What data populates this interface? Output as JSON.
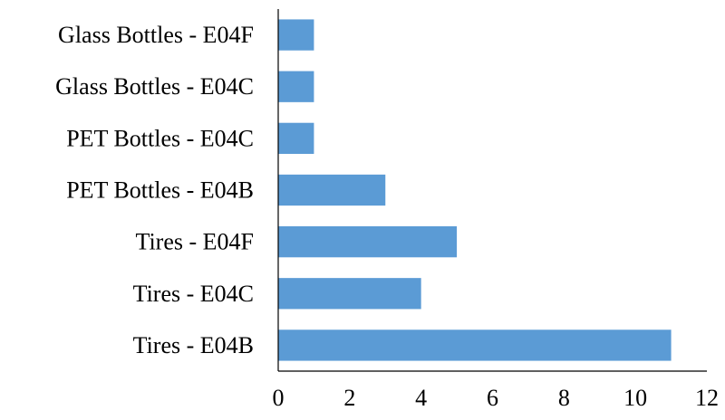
{
  "chart_data": {
    "type": "bar",
    "orientation": "horizontal",
    "categories": [
      "Glass Bottles - E04F",
      "Glass Bottles - E04C",
      "PET Bottles - E04C",
      "PET Bottles - E04B",
      "Tires - E04F",
      "Tires - E04C",
      "Tires - E04B"
    ],
    "values": [
      1,
      1,
      1,
      3,
      5,
      4,
      11
    ],
    "xlim": [
      0,
      12
    ],
    "xticks": [
      0,
      2,
      4,
      6,
      8,
      10,
      12
    ],
    "title": "",
    "xlabel": "",
    "ylabel": "",
    "grid": false,
    "bar_color": "#5b9bd5"
  }
}
